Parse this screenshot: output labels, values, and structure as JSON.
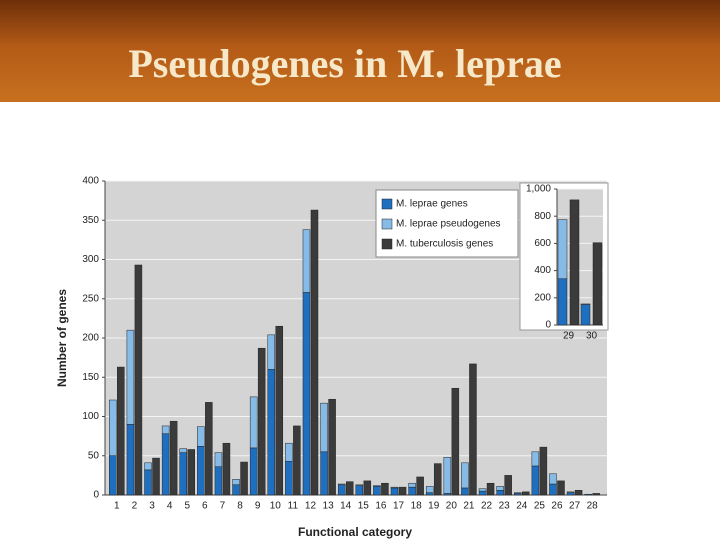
{
  "slide_title": "Pseudogenes in M. leprae",
  "chart_data": [
    {
      "type": "bar",
      "y_label": "Number of genes",
      "x_label": "Functional category",
      "categories": [
        "1",
        "2",
        "3",
        "4",
        "5",
        "6",
        "7",
        "8",
        "9",
        "10",
        "11",
        "12",
        "13",
        "14",
        "15",
        "16",
        "17",
        "18",
        "19",
        "20",
        "21",
        "22",
        "23",
        "24",
        "25",
        "26",
        "27",
        "28"
      ],
      "series": [
        {
          "name": "M. leprae genes",
          "color": "#1f6fc0",
          "values": [
            50,
            90,
            32,
            78,
            54,
            62,
            36,
            13,
            60,
            160,
            43,
            258,
            55,
            13,
            12,
            11,
            9,
            10,
            3,
            2,
            9,
            5,
            6,
            2,
            37,
            14,
            3,
            1
          ]
        },
        {
          "name": "M. leprae pseudogenes",
          "color": "#86bbe8",
          "values": [
            71,
            120,
            9,
            10,
            5,
            25,
            18,
            7,
            65,
            44,
            23,
            80,
            62,
            1,
            1,
            1,
            1,
            5,
            8,
            46,
            32,
            3,
            5,
            1,
            18,
            13,
            1,
            0
          ]
        },
        {
          "name": "M. tuberculosis genes",
          "color": "#3b3b3b",
          "values": [
            163,
            293,
            47,
            94,
            58,
            118,
            66,
            42,
            187,
            215,
            88,
            363,
            122,
            17,
            18,
            15,
            10,
            23,
            40,
            136,
            167,
            15,
            25,
            4,
            61,
            18,
            6,
            2
          ]
        }
      ],
      "ylim": [
        0,
        400
      ],
      "yticks": [
        0,
        50,
        100,
        150,
        200,
        250,
        300,
        350,
        400
      ],
      "grid": true,
      "legend": "top-right"
    },
    {
      "type": "bar",
      "categories": [
        "29",
        "30"
      ],
      "series": [
        {
          "color": "#1f6fc0",
          "values": [
            340,
            150
          ]
        },
        {
          "color": "#86bbe8",
          "values": [
            435,
            5
          ]
        },
        {
          "color": "#3b3b3b",
          "values": [
            920,
            605
          ]
        }
      ],
      "ylim": [
        0,
        1000
      ],
      "yticks": [
        0,
        200,
        400,
        600,
        800,
        {
          "value": 1000,
          "label": "1,000"
        }
      ],
      "grid": true
    }
  ]
}
